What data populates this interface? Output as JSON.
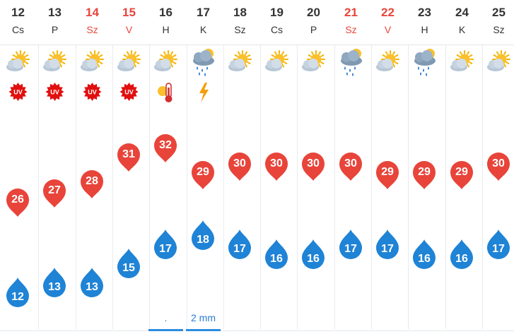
{
  "colors": {
    "max_pin": "#e8443a",
    "min_pin": "#1f83d6",
    "weekend_text": "#e8443a",
    "rain_text": "#2b7bd6",
    "separator": "#e7ebef"
  },
  "days": [
    {
      "date": "12",
      "day": "Cs",
      "weekend": false,
      "weather_icon": "sun-cloud-icon",
      "alert": "uv-icon",
      "max": "26",
      "min": "12",
      "rain": ""
    },
    {
      "date": "13",
      "day": "P",
      "weekend": false,
      "weather_icon": "sun-cloud-icon",
      "alert": "uv-icon",
      "max": "27",
      "min": "13",
      "rain": ""
    },
    {
      "date": "14",
      "day": "Sz",
      "weekend": true,
      "weather_icon": "sun-cloud-icon",
      "alert": "uv-icon",
      "max": "28",
      "min": "13",
      "rain": ""
    },
    {
      "date": "15",
      "day": "V",
      "weekend": true,
      "weather_icon": "sun-cloud-icon",
      "alert": "uv-icon",
      "max": "31",
      "min": "15",
      "rain": ""
    },
    {
      "date": "16",
      "day": "H",
      "weekend": false,
      "weather_icon": "sun-cloud-icon",
      "alert": "heat-thermometer-icon",
      "max": "32",
      "min": "17",
      "rain": "."
    },
    {
      "date": "17",
      "day": "K",
      "weekend": false,
      "weather_icon": "rain-cloud-icon",
      "alert": "lightning-icon",
      "max": "29",
      "min": "18",
      "rain": "2 mm"
    },
    {
      "date": "18",
      "day": "Sz",
      "weekend": false,
      "weather_icon": "sun-cloud-icon",
      "alert": "",
      "max": "30",
      "min": "17",
      "rain": ""
    },
    {
      "date": "19",
      "day": "Cs",
      "weekend": false,
      "weather_icon": "sun-cloud-icon",
      "alert": "",
      "max": "30",
      "min": "16",
      "rain": ""
    },
    {
      "date": "20",
      "day": "P",
      "weekend": false,
      "weather_icon": "sun-cloud-icon",
      "alert": "",
      "max": "30",
      "min": "16",
      "rain": ""
    },
    {
      "date": "21",
      "day": "Sz",
      "weekend": true,
      "weather_icon": "rain-cloud-icon",
      "alert": "",
      "max": "30",
      "min": "17",
      "rain": ""
    },
    {
      "date": "22",
      "day": "V",
      "weekend": true,
      "weather_icon": "sun-cloud-icon",
      "alert": "",
      "max": "29",
      "min": "17",
      "rain": ""
    },
    {
      "date": "23",
      "day": "H",
      "weekend": false,
      "weather_icon": "rain-cloud-icon",
      "alert": "",
      "max": "29",
      "min": "16",
      "rain": ""
    },
    {
      "date": "24",
      "day": "K",
      "weekend": false,
      "weather_icon": "sun-cloud-icon",
      "alert": "",
      "max": "29",
      "min": "16",
      "rain": ""
    },
    {
      "date": "25",
      "day": "Sz",
      "weekend": false,
      "weather_icon": "sun-cloud-icon",
      "alert": "",
      "max": "30",
      "min": "17",
      "rain": ""
    }
  ]
}
